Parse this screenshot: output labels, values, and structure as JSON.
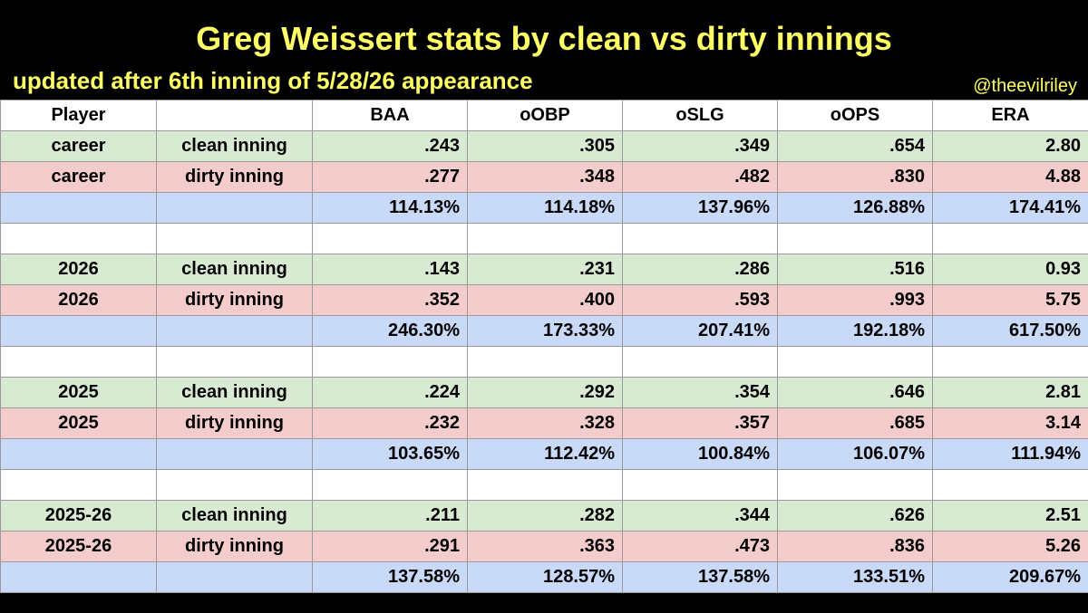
{
  "title": "Greg Weissert stats by clean vs dirty innings",
  "subtitle": "updated after 6th inning of 5/28/26 appearance",
  "handle": "@theevilriley",
  "columns": [
    "Player",
    "",
    "BAA",
    "oOBP",
    "oSLG",
    "oOPS",
    "ERA"
  ],
  "groups": [
    {
      "clean": {
        "player": "career",
        "type": "clean inning",
        "values": [
          ".243",
          ".305",
          ".349",
          ".654",
          "2.80"
        ]
      },
      "dirty": {
        "player": "career",
        "type": "dirty inning",
        "values": [
          ".277",
          ".348",
          ".482",
          ".830",
          "4.88"
        ]
      },
      "ratio": {
        "values": [
          "114.13%",
          "114.18%",
          "137.96%",
          "126.88%",
          "174.41%"
        ]
      }
    },
    {
      "clean": {
        "player": "2026",
        "type": "clean inning",
        "values": [
          ".143",
          ".231",
          ".286",
          ".516",
          "0.93"
        ]
      },
      "dirty": {
        "player": "2026",
        "type": "dirty inning",
        "values": [
          ".352",
          ".400",
          ".593",
          ".993",
          "5.75"
        ]
      },
      "ratio": {
        "values": [
          "246.30%",
          "173.33%",
          "207.41%",
          "192.18%",
          "617.50%"
        ]
      }
    },
    {
      "clean": {
        "player": "2025",
        "type": "clean inning",
        "values": [
          ".224",
          ".292",
          ".354",
          ".646",
          "2.81"
        ]
      },
      "dirty": {
        "player": "2025",
        "type": "dirty inning",
        "values": [
          ".232",
          ".328",
          ".357",
          ".685",
          "3.14"
        ]
      },
      "ratio": {
        "values": [
          "103.65%",
          "112.42%",
          "100.84%",
          "106.07%",
          "111.94%"
        ]
      }
    },
    {
      "clean": {
        "player": "2025-26",
        "type": "clean inning",
        "values": [
          ".211",
          ".282",
          ".344",
          ".626",
          "2.51"
        ]
      },
      "dirty": {
        "player": "2025-26",
        "type": "dirty inning",
        "values": [
          ".291",
          ".363",
          ".473",
          ".836",
          "5.26"
        ]
      },
      "ratio": {
        "values": [
          "137.58%",
          "128.57%",
          "137.58%",
          "133.51%",
          "209.67%"
        ]
      }
    }
  ],
  "colors": {
    "header_bg": "#000000",
    "title_text": "#ffff66",
    "clean_row": "#d9ead3",
    "dirty_row": "#f4cccc",
    "ratio_row": "#c9daf8"
  }
}
